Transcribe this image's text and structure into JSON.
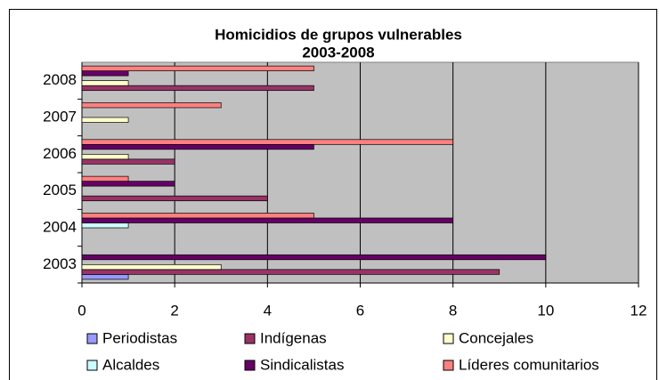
{
  "chart_data": {
    "type": "bar",
    "orientation": "horizontal",
    "title": "Homicidios de grupos vulnerables",
    "subtitle": "2003-2008",
    "categories": [
      "2003",
      "2004",
      "2005",
      "2006",
      "2007",
      "2008"
    ],
    "series": [
      {
        "name": "Periodistas",
        "color": "#9999ff",
        "values": [
          1,
          0,
          0,
          0,
          0,
          0
        ]
      },
      {
        "name": "Indígenas",
        "color": "#993366",
        "values": [
          9,
          0,
          4,
          2,
          0,
          5
        ]
      },
      {
        "name": "Concejales",
        "color": "#ffffcc",
        "values": [
          3,
          0,
          0,
          1,
          1,
          1
        ]
      },
      {
        "name": "Alcaldes",
        "color": "#ccffff",
        "values": [
          0,
          1,
          0,
          0,
          0,
          0
        ]
      },
      {
        "name": "Sindicalistas",
        "color": "#660066",
        "values": [
          10,
          8,
          2,
          5,
          0,
          1
        ]
      },
      {
        "name": "Líderes comunitarios",
        "color": "#ff8080",
        "values": [
          0,
          5,
          1,
          8,
          3,
          5
        ]
      }
    ],
    "xlim": [
      0,
      12
    ],
    "xticks": [
      0,
      2,
      4,
      6,
      8,
      10,
      12
    ],
    "grid": true,
    "legend": "bottom"
  }
}
